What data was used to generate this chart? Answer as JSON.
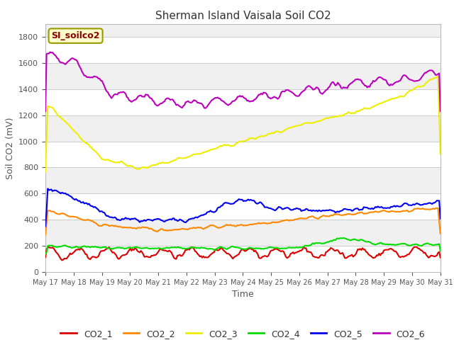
{
  "title": "Sherman Island Vaisala Soil CO2",
  "xlabel": "Time",
  "ylabel": "Soil CO2 (mV)",
  "watermark": "SI_soilco2",
  "ylim": [
    0,
    1900
  ],
  "yticks": [
    0,
    200,
    400,
    600,
    800,
    1000,
    1200,
    1400,
    1600,
    1800
  ],
  "x_labels": [
    "May 17",
    "May 18",
    "May 19",
    "May 20",
    "May 21",
    "May 22",
    "May 23",
    "May 24",
    "May 25",
    "May 26",
    "May 27",
    "May 28",
    "May 29",
    "May 30",
    "May 31"
  ],
  "n_days": 14,
  "colors": {
    "CO2_1": "#dd0000",
    "CO2_2": "#ff8800",
    "CO2_3": "#eeee00",
    "CO2_4": "#00dd00",
    "CO2_5": "#0000ee",
    "CO2_6": "#bb00bb"
  },
  "fig_bg": "#ffffff",
  "plot_bg_light": "#f0f0f0",
  "plot_bg_dark": "#e0e0e0",
  "title_fontsize": 11,
  "axis_fontsize": 9,
  "tick_fontsize": 8,
  "legend_fontsize": 9
}
